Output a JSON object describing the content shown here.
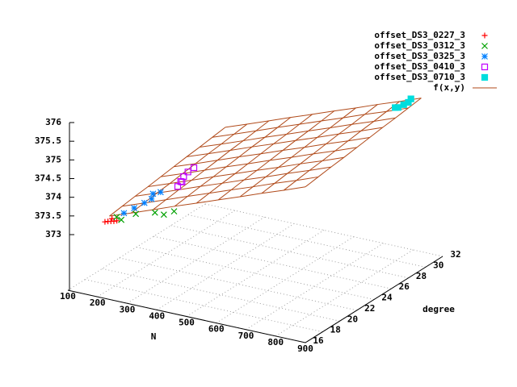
{
  "chart_data": {
    "type": "surface3d",
    "xlabel": "N",
    "ylabel": "degree",
    "xlim": [
      100,
      900
    ],
    "xticks": [
      100,
      200,
      300,
      400,
      500,
      600,
      700,
      800,
      900
    ],
    "ylim": [
      16,
      32
    ],
    "yticks": [
      16,
      18,
      20,
      22,
      24,
      26,
      28,
      30,
      32
    ],
    "zlim": [
      373,
      376
    ],
    "zticks": [
      373,
      373.5,
      374,
      374.5,
      375,
      375.5,
      376
    ],
    "grid": true,
    "legend": "top-right",
    "series": [
      {
        "name": "offset_DS3_0227_3",
        "color": "#ff0000",
        "marker": "plus",
        "x": [
          225,
          235,
          245,
          255,
          265,
          240
        ],
        "y": [
          16,
          16,
          16,
          16,
          16,
          16.3
        ],
        "z": [
          373.55,
          373.58,
          373.6,
          373.62,
          373.65,
          373.62
        ]
      },
      {
        "name": "offset_DS3_0312_3",
        "color": "#00a000",
        "marker": "cross",
        "x": [
          250,
          280,
          300,
          350,
          400,
          380
        ],
        "y": [
          16.5,
          16,
          17,
          17.5,
          18,
          17.5
        ],
        "z": [
          373.65,
          373.7,
          373.75,
          373.8,
          373.85,
          373.8
        ]
      },
      {
        "name": "offset_DS3_0325_3",
        "color": "#0080ff",
        "marker": "star",
        "x": [
          260,
          280,
          300,
          310,
          300,
          320
        ],
        "y": [
          17,
          17.5,
          18,
          18.5,
          19,
          19.2
        ],
        "z": [
          373.7,
          373.8,
          373.9,
          373.95,
          374.0,
          374.05
        ]
      },
      {
        "name": "offset_DS3_0410_3",
        "color": "#c000ff",
        "marker": "square-open",
        "x": [
          340,
          350,
          360,
          340,
          360,
          380
        ],
        "y": [
          20.5,
          20.5,
          20.5,
          21,
          21,
          21
        ],
        "z": [
          374.05,
          374.2,
          374.35,
          374.1,
          374.4,
          374.55
        ]
      },
      {
        "name": "offset_DS3_0710_3",
        "color": "#00dddd",
        "marker": "square-filled",
        "x": [
          870,
          880,
          890,
          900,
          900
        ],
        "y": [
          27.5,
          27.5,
          27.8,
          28,
          28.3
        ],
        "z": [
          376.08,
          376.1,
          376.15,
          376.2,
          376.25
        ]
      }
    ],
    "surface": {
      "name": "f(x,y)",
      "color": "#b04a1a",
      "x": [
        240,
        313,
        387,
        460,
        533,
        607,
        680,
        753,
        827,
        900
      ],
      "y": [
        16,
        17.5,
        19,
        20.5,
        22,
        23.5,
        25,
        26.5,
        28,
        29.5
      ],
      "z": [
        [
          373.73,
          373.94,
          374.16,
          374.38,
          374.59,
          374.81,
          375.02,
          375.24,
          375.45,
          375.67
        ],
        [
          373.78,
          373.99,
          374.21,
          374.43,
          374.64,
          374.86,
          375.07,
          375.29,
          375.5,
          375.72
        ],
        [
          373.83,
          374.04,
          374.26,
          374.48,
          374.69,
          374.91,
          375.12,
          375.34,
          375.55,
          375.77
        ],
        [
          373.87,
          374.08,
          374.3,
          374.52,
          374.73,
          374.95,
          375.16,
          375.38,
          375.59,
          375.81
        ],
        [
          373.92,
          374.13,
          374.35,
          374.57,
          374.78,
          375.0,
          375.21,
          375.43,
          375.64,
          375.86
        ],
        [
          373.97,
          374.18,
          374.4,
          374.62,
          374.83,
          375.05,
          375.26,
          375.48,
          375.69,
          375.91
        ],
        [
          374.02,
          374.23,
          374.45,
          374.67,
          374.88,
          375.1,
          375.31,
          375.53,
          375.74,
          375.96
        ],
        [
          374.06,
          374.27,
          374.49,
          374.71,
          374.92,
          375.14,
          375.35,
          375.57,
          375.78,
          376.0
        ],
        [
          374.11,
          374.32,
          374.54,
          374.76,
          374.97,
          375.19,
          375.4,
          375.62,
          375.83,
          376.05
        ],
        [
          374.16,
          374.37,
          374.59,
          374.81,
          375.02,
          375.24,
          375.45,
          375.67,
          375.88,
          376.1
        ]
      ]
    }
  }
}
